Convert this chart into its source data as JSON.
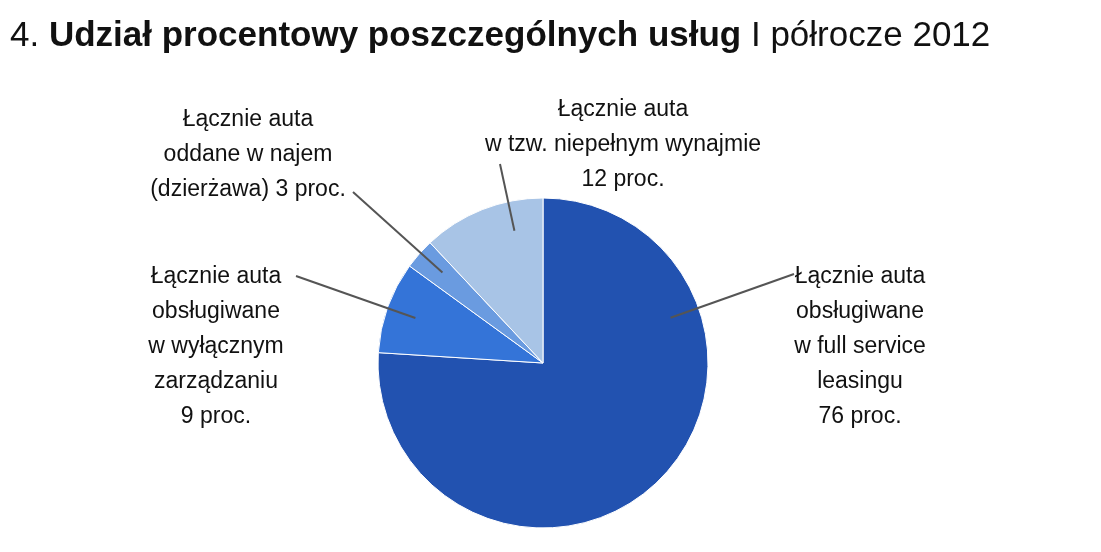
{
  "chart_data": {
    "type": "pie",
    "title": "4. Udział procentowy poszczególnych usług",
    "subtitle": "I półrocze 2012",
    "categories": [
      "Łącznie auta\nobsługiwane\nw full service\nleasingu\n76 proc.",
      "Łącznie auta\nobsługiwane\nw wyłącznym\nzarządzaniu\n9 proc.",
      "Łącznie auta\noddane w najem\n(dzierżawa) 3 proc.",
      "Łącznie auta\nw tzw. niepełnym wynajmie\n12 proc."
    ],
    "values": [
      76,
      9,
      3,
      12
    ],
    "colors": [
      "#2252b0",
      "#3474d8",
      "#6a9be0",
      "#a8c4e6"
    ]
  }
}
